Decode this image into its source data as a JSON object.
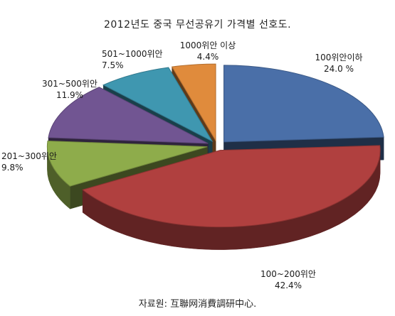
{
  "chart_data": {
    "type": "pie",
    "title": "2012년도 중국 무선공유기 가격별 선호도.",
    "slices": [
      {
        "label": "100위안이하",
        "value": 24.0,
        "value_label": "24.0 %",
        "color": "#4a6fa8"
      },
      {
        "label": "100~200위안",
        "value": 42.4,
        "value_label": "42.4%",
        "color": "#b0403f"
      },
      {
        "label": "201~300위안",
        "value": 9.8,
        "value_label": "9.8%",
        "color": "#8eac4b"
      },
      {
        "label": "301~500위안",
        "value": 11.9,
        "value_label": "11.9%",
        "color": "#715592"
      },
      {
        "label": "501~1000위안",
        "value": 7.5,
        "value_label": "7.5%",
        "color": "#3f97b0"
      },
      {
        "label": "1000위안 이상",
        "value": 4.4,
        "value_label": "4.4%",
        "color": "#e08b3c"
      }
    ],
    "style": "3d-exploded"
  },
  "source": "자료원: 互聯网消費調研中心."
}
